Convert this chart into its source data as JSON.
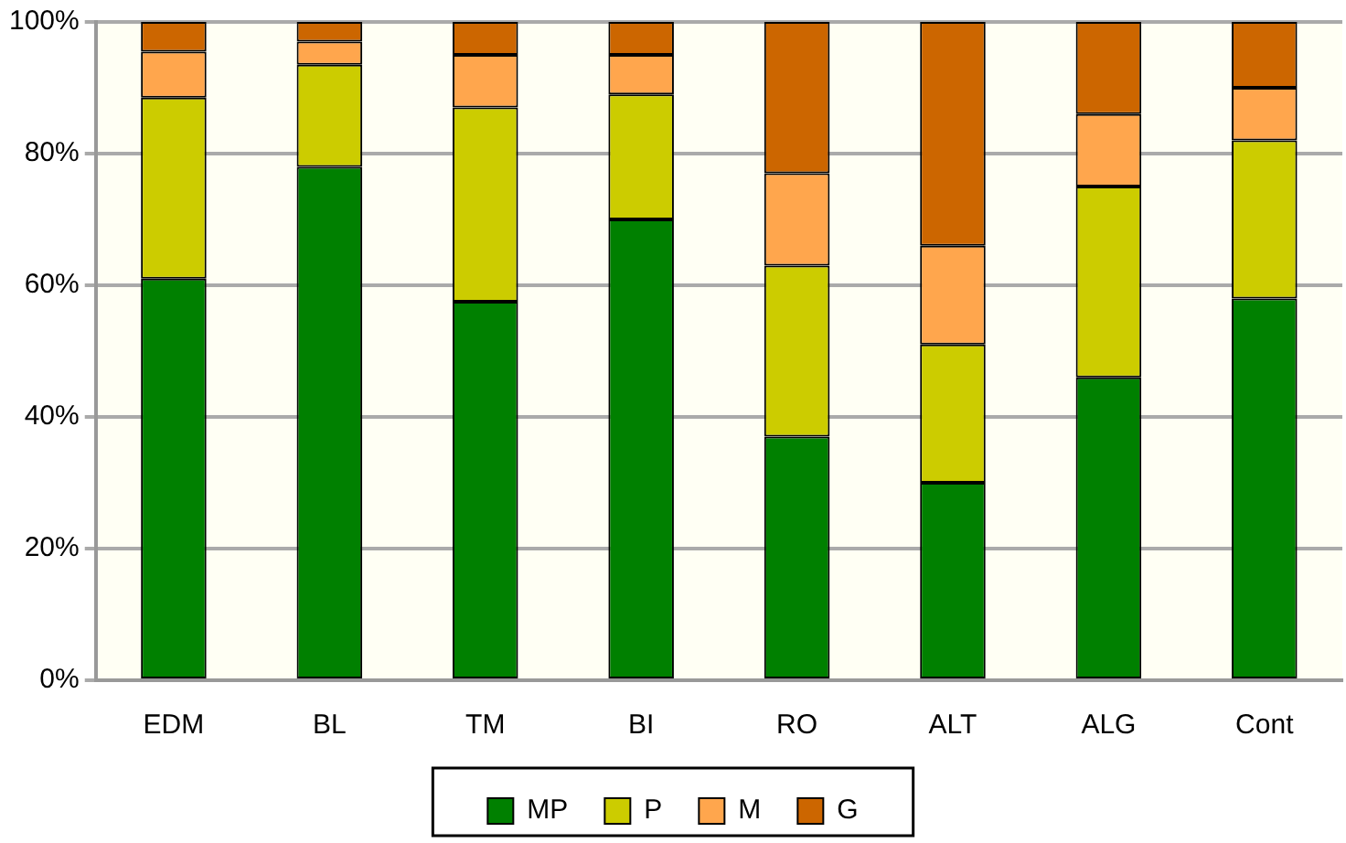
{
  "chart_data": {
    "type": "bar",
    "stacked": true,
    "categories": [
      "EDM",
      "BL",
      "TM",
      "BI",
      "RO",
      "ALT",
      "ALG",
      "Cont"
    ],
    "series": [
      {
        "name": "MP",
        "color": "#008000",
        "values": [
          61,
          78,
          57.5,
          70,
          37,
          30,
          46,
          58
        ]
      },
      {
        "name": "P",
        "color": "#cccc00",
        "values": [
          27.5,
          15.5,
          29.5,
          19,
          26,
          21,
          29,
          24
        ]
      },
      {
        "name": "M",
        "color": "#ffa64d",
        "values": [
          7,
          3.5,
          8,
          6,
          14,
          15,
          11,
          8
        ]
      },
      {
        "name": "G",
        "color": "#cc6600",
        "values": [
          4.5,
          3,
          5,
          5,
          23,
          34,
          14,
          10
        ]
      }
    ],
    "ylim": [
      0,
      100
    ],
    "yticks": [
      {
        "value": 0,
        "label": "0%"
      },
      {
        "value": 20,
        "label": "20%"
      },
      {
        "value": 40,
        "label": "40%"
      },
      {
        "value": 60,
        "label": "60%"
      },
      {
        "value": 80,
        "label": "80%"
      },
      {
        "value": 100,
        "label": "100%"
      }
    ],
    "grid": "y",
    "legend": "bottom"
  }
}
